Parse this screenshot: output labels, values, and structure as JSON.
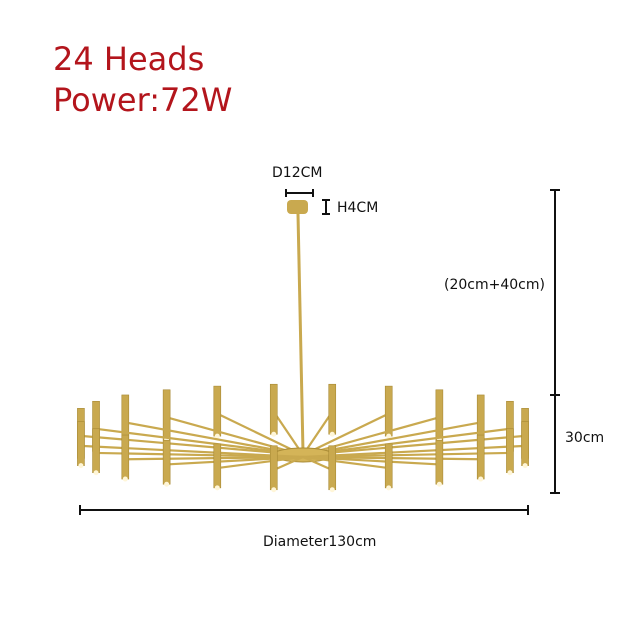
{
  "specs": {
    "heads": "24 Heads",
    "power": "Power:72W"
  },
  "dimensions": {
    "canopy_diameter": "D12CM",
    "canopy_height": "H4CM",
    "rod_length": "(20cm+40cm)",
    "body_height": "30cm",
    "diameter": "Diameter130cm"
  },
  "product": {
    "head_count": 24,
    "finish_color": "#c9a94f",
    "spec_text_color": "#b3151c"
  }
}
